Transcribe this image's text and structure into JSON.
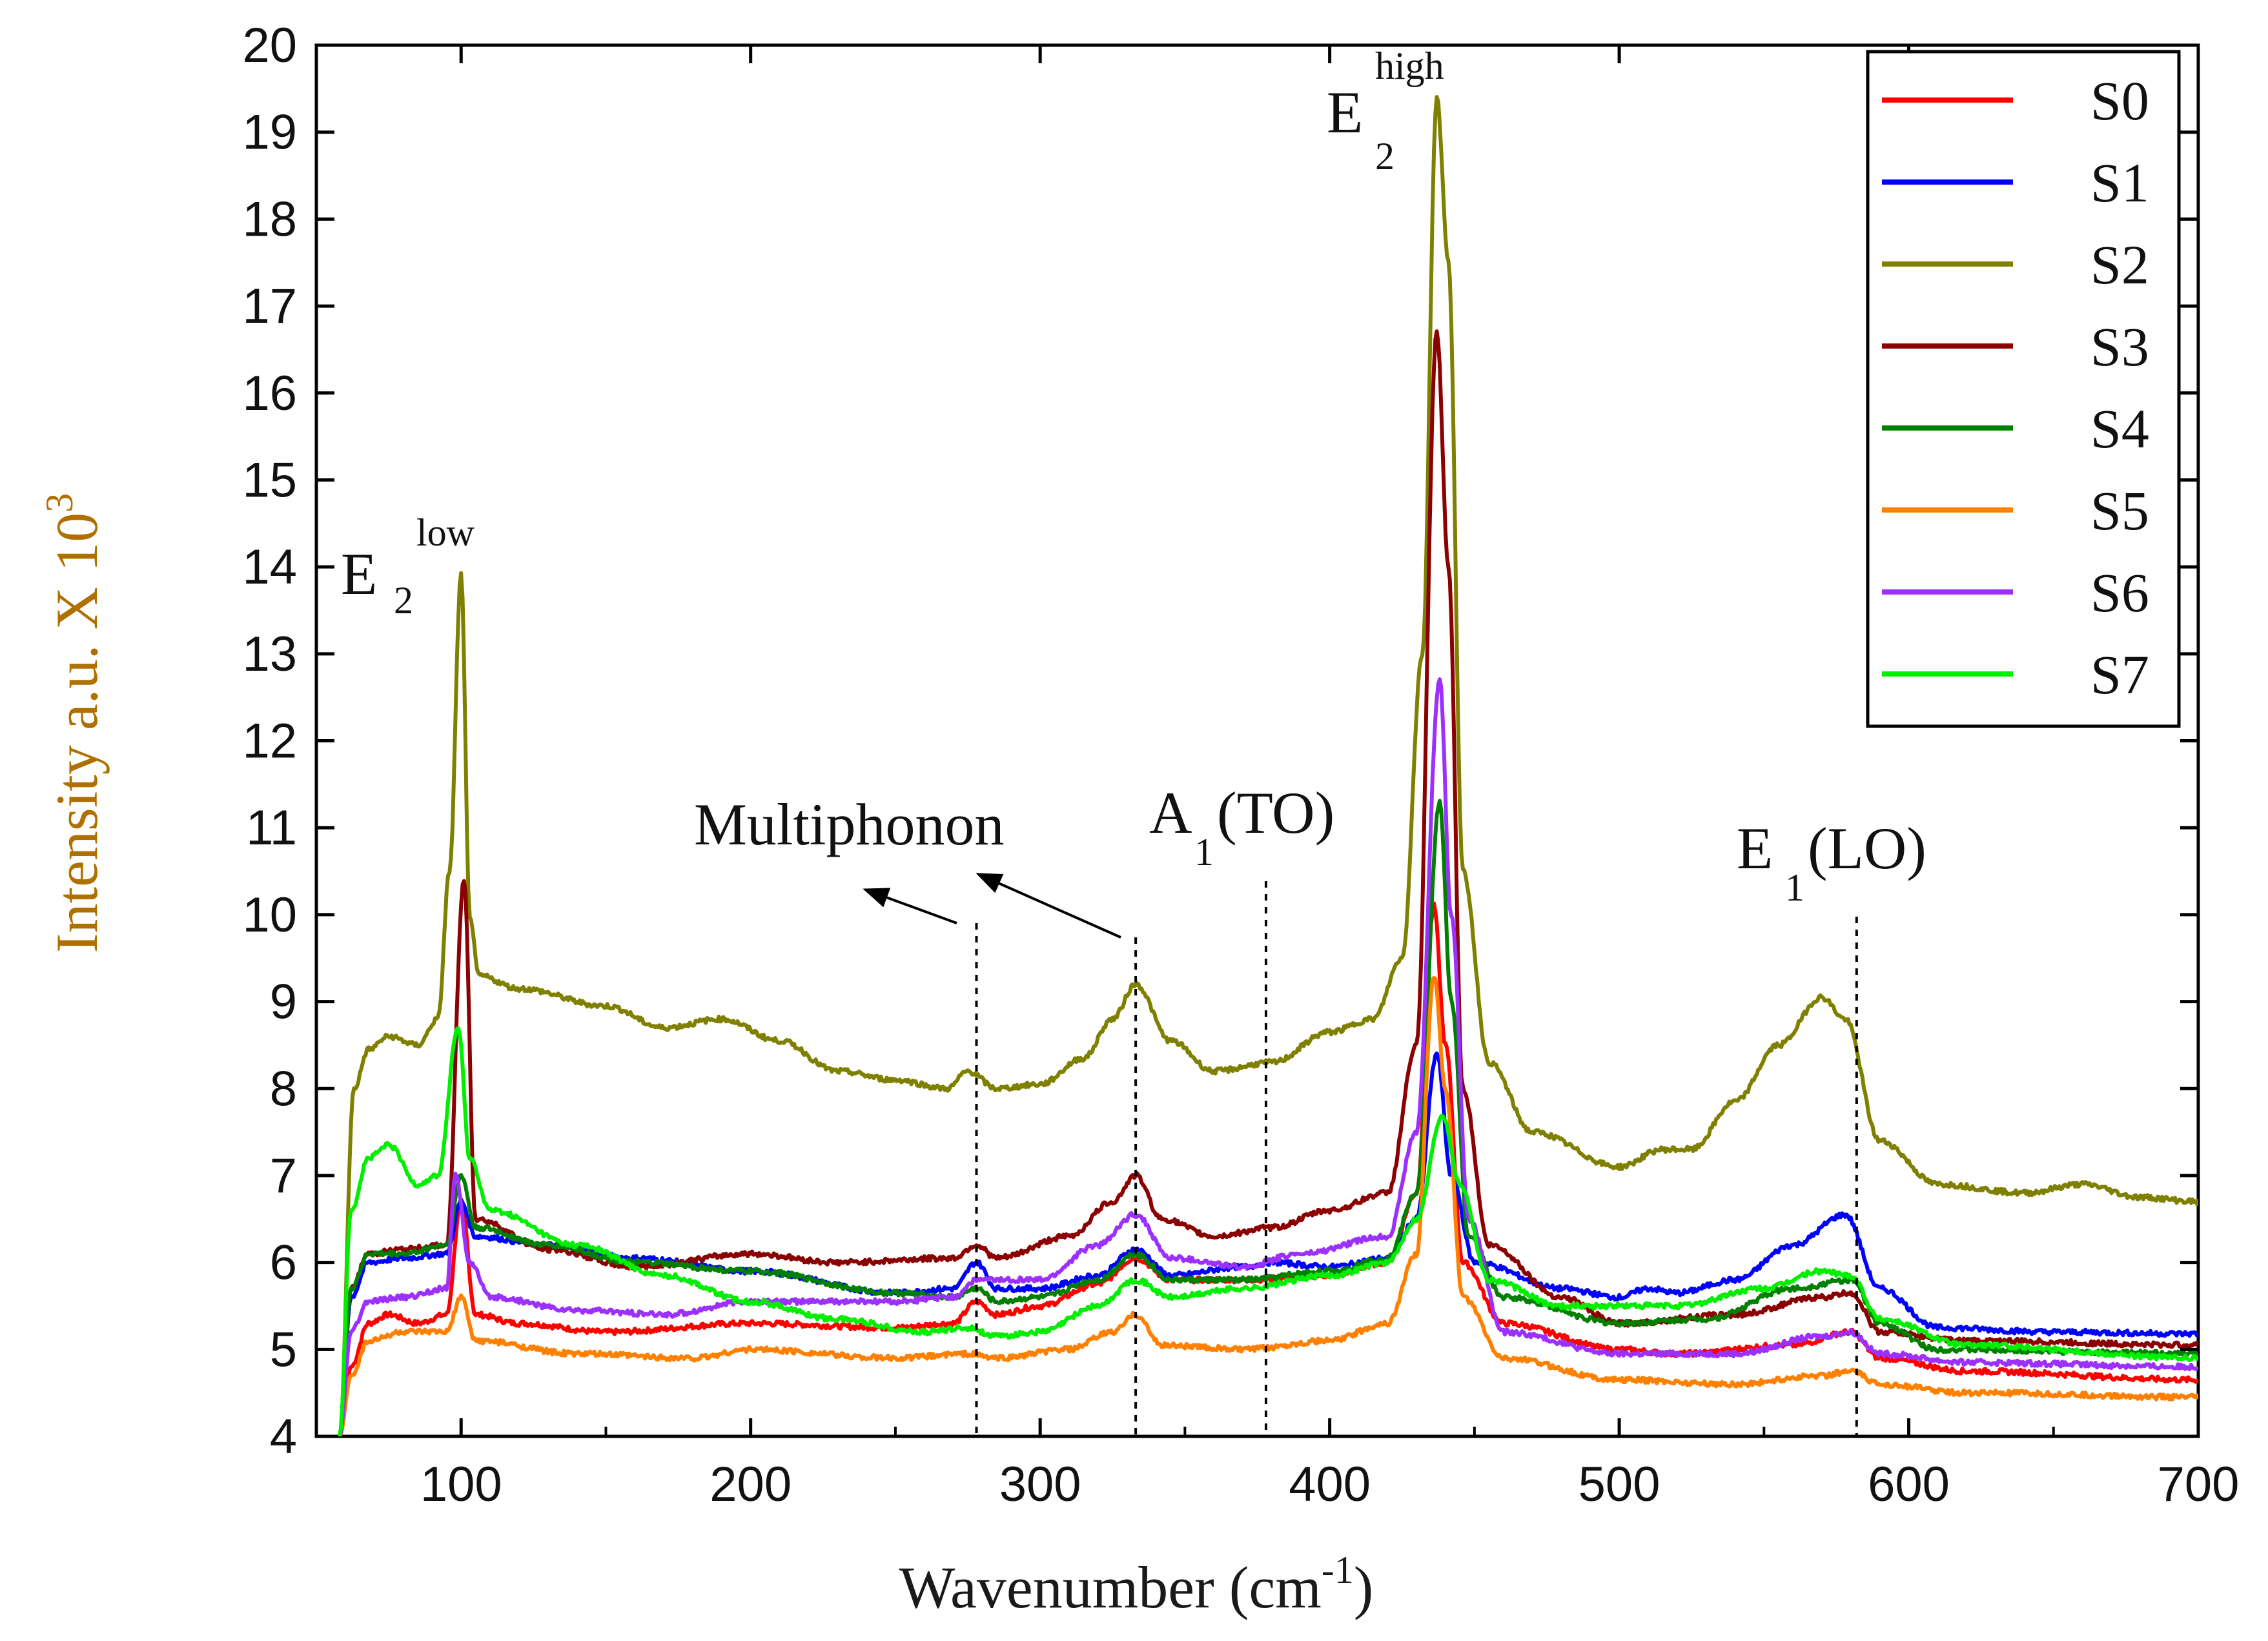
{
  "chart_data": {
    "type": "line",
    "xlabel": "Wavenumber (cm",
    "xlabel_sup": "-1",
    "xlabel_tail": ")",
    "ylabel": "Intensity a.u. X 10",
    "ylabel_sup": "3",
    "xlim": [
      50,
      700
    ],
    "ylim": [
      4,
      20
    ],
    "xticks": [
      "100",
      "200",
      "300",
      "400",
      "500",
      "600",
      "700"
    ],
    "yticks": [
      "4",
      "5",
      "6",
      "7",
      "8",
      "9",
      "10",
      "11",
      "12",
      "13",
      "14",
      "15",
      "16",
      "17",
      "18",
      "19",
      "20"
    ],
    "legend_position": "top-right",
    "annotations": {
      "e2low": {
        "main": "E",
        "sub": "2",
        "sup": "low"
      },
      "e2high": {
        "main": "E",
        "sub": "2",
        "sup": "high"
      },
      "multiphonon": "Multiphonon",
      "a1to": {
        "main": "A",
        "sub": "1",
        "tail": "(TO)"
      },
      "e1lo": {
        "main": "E",
        "sub": "1",
        "tail": "(LO)"
      }
    },
    "dashed_markers_x": [
      278,
      333,
      378,
      582
    ],
    "series": [
      {
        "name": "S0",
        "color": "#ff0000",
        "points": [
          [
            58,
            4
          ],
          [
            62,
            4.8
          ],
          [
            68,
            5.3
          ],
          [
            75,
            5.4
          ],
          [
            85,
            5.3
          ],
          [
            95,
            5.4
          ],
          [
            100,
            6.7
          ],
          [
            105,
            5.4
          ],
          [
            120,
            5.3
          ],
          [
            150,
            5.2
          ],
          [
            200,
            5.3
          ],
          [
            250,
            5.25
          ],
          [
            270,
            5.3
          ],
          [
            278,
            5.55
          ],
          [
            285,
            5.4
          ],
          [
            300,
            5.5
          ],
          [
            320,
            5.75
          ],
          [
            333,
            6.05
          ],
          [
            345,
            5.8
          ],
          [
            370,
            5.8
          ],
          [
            400,
            5.85
          ],
          [
            420,
            6.0
          ],
          [
            430,
            6.8
          ],
          [
            436,
            10.1
          ],
          [
            440,
            8.5
          ],
          [
            446,
            6.0
          ],
          [
            460,
            5.3
          ],
          [
            500,
            5.0
          ],
          [
            520,
            4.95
          ],
          [
            560,
            5.05
          ],
          [
            580,
            5.2
          ],
          [
            590,
            4.9
          ],
          [
            620,
            4.75
          ],
          [
            700,
            4.65
          ]
        ]
      },
      {
        "name": "S1",
        "color": "#0000ff",
        "points": [
          [
            58,
            4
          ],
          [
            62,
            5.6
          ],
          [
            68,
            6.0
          ],
          [
            80,
            6.05
          ],
          [
            95,
            6.1
          ],
          [
            100,
            6.7
          ],
          [
            105,
            6.3
          ],
          [
            130,
            6.2
          ],
          [
            160,
            6.05
          ],
          [
            200,
            5.9
          ],
          [
            250,
            5.65
          ],
          [
            270,
            5.7
          ],
          [
            278,
            6.0
          ],
          [
            285,
            5.7
          ],
          [
            300,
            5.7
          ],
          [
            320,
            5.85
          ],
          [
            333,
            6.15
          ],
          [
            345,
            5.85
          ],
          [
            370,
            5.95
          ],
          [
            380,
            6.0
          ],
          [
            400,
            5.95
          ],
          [
            420,
            6.05
          ],
          [
            430,
            6.5
          ],
          [
            437,
            8.4
          ],
          [
            442,
            7.0
          ],
          [
            450,
            6.0
          ],
          [
            480,
            5.7
          ],
          [
            500,
            5.6
          ],
          [
            510,
            5.7
          ],
          [
            520,
            5.65
          ],
          [
            540,
            5.8
          ],
          [
            560,
            6.2
          ],
          [
            578,
            6.55
          ],
          [
            590,
            5.7
          ],
          [
            610,
            5.25
          ],
          [
            650,
            5.2
          ],
          [
            700,
            5.18
          ]
        ]
      },
      {
        "name": "S2",
        "color": "#808000",
        "points": [
          [
            58,
            4
          ],
          [
            63,
            8.0
          ],
          [
            68,
            8.45
          ],
          [
            75,
            8.6
          ],
          [
            85,
            8.5
          ],
          [
            92,
            8.8
          ],
          [
            96,
            10.5
          ],
          [
            100,
            13.9
          ],
          [
            103,
            10.0
          ],
          [
            106,
            9.3
          ],
          [
            120,
            9.15
          ],
          [
            150,
            8.95
          ],
          [
            170,
            8.7
          ],
          [
            190,
            8.8
          ],
          [
            210,
            8.55
          ],
          [
            230,
            8.2
          ],
          [
            250,
            8.1
          ],
          [
            268,
            8.0
          ],
          [
            275,
            8.2
          ],
          [
            285,
            8.0
          ],
          [
            300,
            8.05
          ],
          [
            315,
            8.35
          ],
          [
            325,
            8.8
          ],
          [
            333,
            9.2
          ],
          [
            345,
            8.55
          ],
          [
            360,
            8.2
          ],
          [
            380,
            8.3
          ],
          [
            400,
            8.65
          ],
          [
            415,
            8.8
          ],
          [
            425,
            9.5
          ],
          [
            432,
            13.0
          ],
          [
            437,
            19.4
          ],
          [
            441,
            17.5
          ],
          [
            446,
            10.5
          ],
          [
            455,
            8.3
          ],
          [
            470,
            7.5
          ],
          [
            500,
            7.1
          ],
          [
            515,
            7.3
          ],
          [
            525,
            7.3
          ],
          [
            540,
            7.85
          ],
          [
            555,
            8.5
          ],
          [
            570,
            9.05
          ],
          [
            578,
            8.8
          ],
          [
            590,
            7.4
          ],
          [
            610,
            6.9
          ],
          [
            640,
            6.8
          ],
          [
            660,
            6.9
          ],
          [
            680,
            6.75
          ],
          [
            700,
            6.7
          ]
        ]
      },
      {
        "name": "S3",
        "color": "#8b0000",
        "points": [
          [
            58,
            4
          ],
          [
            62,
            5.7
          ],
          [
            68,
            6.1
          ],
          [
            80,
            6.15
          ],
          [
            95,
            6.2
          ],
          [
            101,
            10.4
          ],
          [
            105,
            6.5
          ],
          [
            130,
            6.15
          ],
          [
            160,
            5.95
          ],
          [
            200,
            6.1
          ],
          [
            230,
            6.0
          ],
          [
            270,
            6.05
          ],
          [
            278,
            6.2
          ],
          [
            285,
            6.05
          ],
          [
            310,
            6.3
          ],
          [
            325,
            6.7
          ],
          [
            333,
            7.0
          ],
          [
            342,
            6.5
          ],
          [
            360,
            6.3
          ],
          [
            380,
            6.4
          ],
          [
            400,
            6.6
          ],
          [
            420,
            6.8
          ],
          [
            430,
            8.5
          ],
          [
            437,
            16.7
          ],
          [
            441,
            14.0
          ],
          [
            446,
            8.0
          ],
          [
            455,
            6.2
          ],
          [
            480,
            5.6
          ],
          [
            500,
            5.3
          ],
          [
            540,
            5.4
          ],
          [
            570,
            5.6
          ],
          [
            580,
            5.65
          ],
          [
            590,
            5.2
          ],
          [
            620,
            5.1
          ],
          [
            700,
            5.05
          ]
        ]
      },
      {
        "name": "S4",
        "color": "#008000",
        "points": [
          [
            58,
            4
          ],
          [
            62,
            5.7
          ],
          [
            68,
            6.1
          ],
          [
            80,
            6.1
          ],
          [
            95,
            6.2
          ],
          [
            100,
            7.0
          ],
          [
            105,
            6.4
          ],
          [
            130,
            6.2
          ],
          [
            160,
            6.0
          ],
          [
            200,
            5.9
          ],
          [
            250,
            5.65
          ],
          [
            270,
            5.6
          ],
          [
            278,
            5.7
          ],
          [
            285,
            5.55
          ],
          [
            300,
            5.6
          ],
          [
            320,
            5.8
          ],
          [
            333,
            6.1
          ],
          [
            345,
            5.8
          ],
          [
            370,
            5.8
          ],
          [
            400,
            5.9
          ],
          [
            420,
            6.05
          ],
          [
            430,
            6.8
          ],
          [
            438,
            11.3
          ],
          [
            442,
            9.0
          ],
          [
            448,
            6.3
          ],
          [
            460,
            5.6
          ],
          [
            500,
            5.3
          ],
          [
            530,
            5.35
          ],
          [
            560,
            5.7
          ],
          [
            580,
            5.8
          ],
          [
            590,
            5.3
          ],
          [
            610,
            5.0
          ],
          [
            700,
            4.95
          ]
        ]
      },
      {
        "name": "S5",
        "color": "#ff8000",
        "points": [
          [
            58,
            4
          ],
          [
            62,
            4.7
          ],
          [
            68,
            5.1
          ],
          [
            80,
            5.2
          ],
          [
            95,
            5.2
          ],
          [
            100,
            5.6
          ],
          [
            105,
            5.1
          ],
          [
            140,
            4.95
          ],
          [
            180,
            4.9
          ],
          [
            200,
            5.0
          ],
          [
            250,
            4.9
          ],
          [
            275,
            4.95
          ],
          [
            285,
            4.9
          ],
          [
            310,
            5.0
          ],
          [
            325,
            5.2
          ],
          [
            333,
            5.4
          ],
          [
            342,
            5.05
          ],
          [
            370,
            5.0
          ],
          [
            400,
            5.1
          ],
          [
            420,
            5.3
          ],
          [
            430,
            6.1
          ],
          [
            436,
            9.3
          ],
          [
            440,
            8.0
          ],
          [
            446,
            5.6
          ],
          [
            460,
            4.9
          ],
          [
            500,
            4.65
          ],
          [
            540,
            4.6
          ],
          [
            570,
            4.7
          ],
          [
            580,
            4.75
          ],
          [
            590,
            4.6
          ],
          [
            620,
            4.5
          ],
          [
            700,
            4.45
          ]
        ]
      },
      {
        "name": "S6",
        "color": "#9b30ff",
        "points": [
          [
            58,
            4
          ],
          [
            62,
            5.2
          ],
          [
            68,
            5.55
          ],
          [
            80,
            5.6
          ],
          [
            95,
            5.7
          ],
          [
            98,
            7.0
          ],
          [
            103,
            6.0
          ],
          [
            110,
            5.6
          ],
          [
            140,
            5.45
          ],
          [
            170,
            5.4
          ],
          [
            200,
            5.55
          ],
          [
            250,
            5.55
          ],
          [
            270,
            5.6
          ],
          [
            278,
            5.8
          ],
          [
            300,
            5.8
          ],
          [
            320,
            6.2
          ],
          [
            333,
            6.55
          ],
          [
            345,
            6.05
          ],
          [
            370,
            5.95
          ],
          [
            390,
            6.1
          ],
          [
            420,
            6.3
          ],
          [
            430,
            7.5
          ],
          [
            438,
            12.7
          ],
          [
            442,
            10.0
          ],
          [
            448,
            6.5
          ],
          [
            460,
            5.2
          ],
          [
            500,
            4.95
          ],
          [
            540,
            4.95
          ],
          [
            570,
            5.15
          ],
          [
            580,
            5.2
          ],
          [
            590,
            4.95
          ],
          [
            620,
            4.85
          ],
          [
            700,
            4.8
          ]
        ]
      },
      {
        "name": "S7",
        "color": "#00ee00",
        "points": [
          [
            58,
            4
          ],
          [
            62,
            6.6
          ],
          [
            68,
            7.2
          ],
          [
            75,
            7.35
          ],
          [
            85,
            6.9
          ],
          [
            92,
            7.0
          ],
          [
            99,
            8.7
          ],
          [
            103,
            7.2
          ],
          [
            110,
            6.6
          ],
          [
            140,
            6.2
          ],
          [
            170,
            5.85
          ],
          [
            200,
            5.55
          ],
          [
            230,
            5.35
          ],
          [
            260,
            5.2
          ],
          [
            275,
            5.25
          ],
          [
            285,
            5.15
          ],
          [
            300,
            5.2
          ],
          [
            320,
            5.5
          ],
          [
            333,
            5.8
          ],
          [
            345,
            5.6
          ],
          [
            370,
            5.7
          ],
          [
            400,
            5.85
          ],
          [
            420,
            6.0
          ],
          [
            430,
            6.5
          ],
          [
            439,
            7.7
          ],
          [
            445,
            6.9
          ],
          [
            455,
            5.8
          ],
          [
            480,
            5.5
          ],
          [
            520,
            5.5
          ],
          [
            550,
            5.7
          ],
          [
            570,
            5.9
          ],
          [
            580,
            5.85
          ],
          [
            590,
            5.35
          ],
          [
            620,
            5.05
          ],
          [
            700,
            4.9
          ]
        ]
      }
    ]
  }
}
